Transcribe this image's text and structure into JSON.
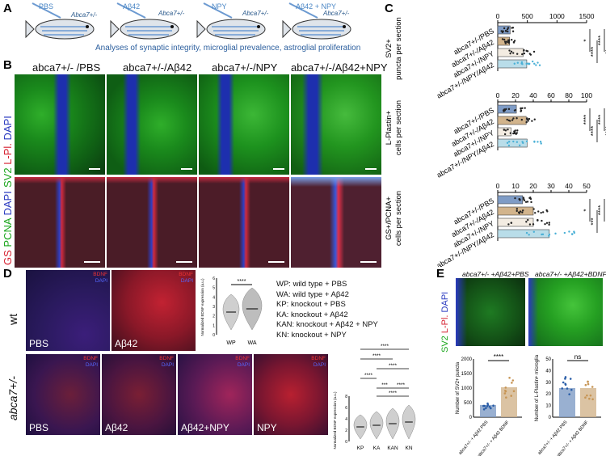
{
  "panels": {
    "A": "A",
    "B": "B",
    "C": "C",
    "D": "D",
    "E": "E"
  },
  "panelA": {
    "groups": [
      "PBS",
      "Aβ42",
      "NPY",
      "Aβ42 + NPY"
    ],
    "fish_genotype": "Abca7+/-",
    "caption": "Analyses of synaptic integrity, microglial prevalence, astroglial proliferation"
  },
  "panelB": {
    "columns": [
      "abca7+/- /PBS",
      "abca7+/-/Aβ42",
      "abca7+/-/NPY",
      "abca7+/-/Aβ42+NPY"
    ],
    "row1_label": {
      "a": "SV2",
      "b": "L-Pl.",
      "c": "DAPI"
    },
    "row2_label": {
      "a": "GS",
      "b": "PCNA",
      "c": "DAPI"
    }
  },
  "panelC": {
    "groups": [
      "abca7+/-/PBS",
      "abca7+/-/Aβ42",
      "abca7+/-/NPY",
      "abca7+/-/NPY/Aβ42"
    ],
    "charts": [
      {
        "ylabel1": "SV2+",
        "ylabel2": "puncta per section",
        "ticks": [
          "0",
          "500",
          "1000",
          "1500"
        ],
        "stars": [
          "*",
          "****",
          "****",
          "**"
        ]
      },
      {
        "ylabel1": "L-Plastin+",
        "ylabel2": "cells per section",
        "ticks": [
          "0",
          "20",
          "40",
          "60",
          "80",
          "100"
        ],
        "stars": [
          "****",
          "****",
          "****",
          "****"
        ]
      },
      {
        "ylabel1": "GS+/PCNA+",
        "ylabel2": "cells per section",
        "ticks": [
          "0",
          "10",
          "20",
          "30",
          "40",
          "50"
        ],
        "stars": [
          "*",
          "***",
          "****"
        ]
      }
    ]
  },
  "panelD": {
    "row_wt": "wt",
    "row_ko": "abca7+/-",
    "top_tiles": [
      "PBS",
      "Aβ42"
    ],
    "bottom_tiles": [
      "PBS",
      "Aβ42",
      "Aβ42+NPY",
      "NPY"
    ],
    "stain_a": "BDNF",
    "stain_b": "DAPI",
    "small_violin": {
      "ylabel": "Normalized BDNF expression (a.u.)",
      "categories": [
        "WP",
        "WA"
      ],
      "stars": "****",
      "ticks": [
        "0",
        "1",
        "2",
        "3",
        "4",
        "5",
        "6"
      ]
    },
    "legend": [
      "WP: wild type + PBS",
      "WA: wild type + Aβ42",
      "KP: knockout + PBS",
      "KA: knockout + Aβ42",
      "KAN: knockout + Aβ42 + NPY",
      "KN: knockout + NPY"
    ],
    "big_violin": {
      "ylabel": "Normalized BDNF expression (a.u.)",
      "categories": [
        "KP",
        "KA",
        "KAN",
        "KN"
      ],
      "stars": [
        "****",
        "****",
        "****",
        "****",
        "***",
        "****",
        "****"
      ],
      "ticks": [
        "0",
        "1",
        "2",
        "3",
        "4",
        "5",
        "6",
        "7",
        "8"
      ]
    }
  },
  "panelE": {
    "heads": [
      "abca7+/- +Aβ42+PBS",
      "abca7+/- +Aβ42+BDNF"
    ],
    "stain": {
      "a": "SV2",
      "b": "L-Pl.",
      "c": "DAPI"
    },
    "chart1": {
      "ylabel": "Number of SV2+ puncta",
      "ticks": [
        "0",
        "500",
        "1000",
        "1500",
        "2000"
      ],
      "sig": "****",
      "cats": [
        "abca7+/- + Aβ42 PBS",
        "abca7+/- + Aβ42 BDNF"
      ]
    },
    "chart2": {
      "ylabel": "Number of L-Plastin+ microglia",
      "ticks": [
        "0",
        "10",
        "20",
        "30",
        "40",
        "50"
      ],
      "sig": "ns",
      "cats": [
        "abca7+/- + Aβ42 PBS",
        "abca7+/- + Aβ42 BDNF"
      ]
    }
  },
  "chart_data": [
    {
      "type": "bar",
      "title": "",
      "ylabel": "SV2+ puncta per section",
      "categories": [
        "abca7+/-/PBS",
        "abca7+/-/Aβ42",
        "abca7+/-/NPY",
        "abca7+/-/NPY/Aβ42"
      ],
      "values": [
        210,
        200,
        430,
        490
      ],
      "ylim": [
        0,
        1500
      ],
      "orientation": "horizontal"
    },
    {
      "type": "bar",
      "title": "",
      "ylabel": "L-Plastin+ cells per section",
      "categories": [
        "abca7+/-/PBS",
        "abca7+/-/Aβ42",
        "abca7+/-/NPY",
        "abca7+/-/NPY/Aβ42"
      ],
      "values": [
        21,
        32,
        15,
        33
      ],
      "ylim": [
        0,
        100
      ],
      "orientation": "horizontal"
    },
    {
      "type": "bar",
      "title": "",
      "ylabel": "GS+/PCNA+ cells per section",
      "categories": [
        "abca7+/-/PBS",
        "abca7+/-/Aβ42",
        "abca7+/-/NPY",
        "abca7+/-/NPY/Aβ42"
      ],
      "values": [
        14,
        20,
        20,
        29
      ],
      "ylim": [
        0,
        50
      ],
      "orientation": "horizontal"
    },
    {
      "type": "bar",
      "title": "",
      "ylabel": "Number of SV2+ puncta",
      "categories": [
        "abca7+/- + Aβ42 PBS",
        "abca7+/- + Aβ42 BDNF"
      ],
      "values": [
        420,
        1030
      ],
      "ylim": [
        0,
        2000
      ]
    },
    {
      "type": "bar",
      "title": "",
      "ylabel": "Number of L-Plastin+ microglia",
      "categories": [
        "abca7+/- + Aβ42 PBS",
        "abca7+/- + Aβ42 BDNF"
      ],
      "values": [
        25,
        25
      ],
      "ylim": [
        0,
        50
      ]
    }
  ],
  "colors": {
    "pbs": "#7f9cc6",
    "ab": "#d2b48c",
    "npy": "#f3ece2",
    "npyab": "#b9dde9",
    "sv2": "#19a51b",
    "red": "#d61f2f",
    "blue": "#2a3ac0"
  }
}
